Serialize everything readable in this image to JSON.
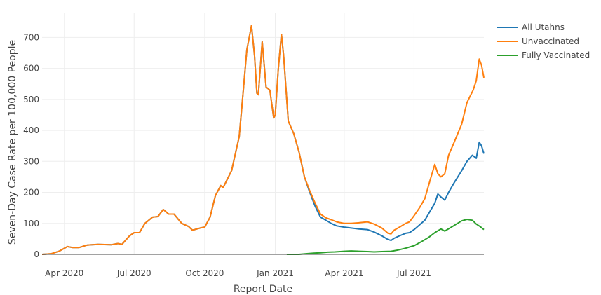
{
  "chart_data": {
    "type": "line",
    "title": "",
    "xlabel": "Report Date",
    "ylabel": "Seven-Day Case Rate per 100,000 People",
    "ylim": [
      0,
      780
    ],
    "xlim": [
      "2020-03-03",
      "2021-09-30"
    ],
    "yticks": [
      0,
      100,
      200,
      300,
      400,
      500,
      600,
      700
    ],
    "xticks": [
      {
        "date": "2020-04-01",
        "label": "Apr 2020"
      },
      {
        "date": "2020-07-01",
        "label": "Jul 2020"
      },
      {
        "date": "2020-10-01",
        "label": "Oct 2020"
      },
      {
        "date": "2021-01-01",
        "label": "Jan 2021"
      },
      {
        "date": "2021-04-01",
        "label": "Apr 2021"
      },
      {
        "date": "2021-07-01",
        "label": "Jul 2021"
      }
    ],
    "grid": true,
    "legend_position": "top-right",
    "series": [
      {
        "name": "All Utahns",
        "color": "#1f77b4",
        "points": [
          [
            "2020-03-03",
            0
          ],
          [
            "2020-03-15",
            2
          ],
          [
            "2020-03-25",
            10
          ],
          [
            "2020-04-05",
            25
          ],
          [
            "2020-04-12",
            22
          ],
          [
            "2020-04-20",
            22
          ],
          [
            "2020-05-01",
            30
          ],
          [
            "2020-05-15",
            32
          ],
          [
            "2020-06-01",
            31
          ],
          [
            "2020-06-10",
            35
          ],
          [
            "2020-06-15",
            32
          ],
          [
            "2020-06-25",
            60
          ],
          [
            "2020-07-01",
            70
          ],
          [
            "2020-07-08",
            70
          ],
          [
            "2020-07-15",
            100
          ],
          [
            "2020-07-25",
            120
          ],
          [
            "2020-08-01",
            122
          ],
          [
            "2020-08-08",
            145
          ],
          [
            "2020-08-15",
            130
          ],
          [
            "2020-08-22",
            130
          ],
          [
            "2020-09-01",
            100
          ],
          [
            "2020-09-10",
            90
          ],
          [
            "2020-09-15",
            78
          ],
          [
            "2020-09-25",
            85
          ],
          [
            "2020-10-01",
            88
          ],
          [
            "2020-10-08",
            120
          ],
          [
            "2020-10-15",
            190
          ],
          [
            "2020-10-22",
            222
          ],
          [
            "2020-10-25",
            215
          ],
          [
            "2020-11-01",
            250
          ],
          [
            "2020-11-05",
            270
          ],
          [
            "2020-11-15",
            380
          ],
          [
            "2020-11-20",
            520
          ],
          [
            "2020-11-25",
            660
          ],
          [
            "2020-12-01",
            738
          ],
          [
            "2020-12-05",
            640
          ],
          [
            "2020-12-08",
            520
          ],
          [
            "2020-12-10",
            515
          ],
          [
            "2020-12-15",
            686
          ],
          [
            "2020-12-20",
            540
          ],
          [
            "2020-12-25",
            530
          ],
          [
            "2020-12-30",
            440
          ],
          [
            "2021-01-01",
            450
          ],
          [
            "2021-01-05",
            600
          ],
          [
            "2021-01-09",
            710
          ],
          [
            "2021-01-12",
            640
          ],
          [
            "2021-01-18",
            430
          ],
          [
            "2021-01-25",
            390
          ],
          [
            "2021-02-01",
            330
          ],
          [
            "2021-02-08",
            250
          ],
          [
            "2021-02-15",
            200
          ],
          [
            "2021-02-22",
            155
          ],
          [
            "2021-03-01",
            120
          ],
          [
            "2021-03-08",
            110
          ],
          [
            "2021-03-15",
            100
          ],
          [
            "2021-03-22",
            92
          ],
          [
            "2021-04-01",
            88
          ],
          [
            "2021-04-10",
            85
          ],
          [
            "2021-04-20",
            82
          ],
          [
            "2021-05-01",
            80
          ],
          [
            "2021-05-10",
            72
          ],
          [
            "2021-05-20",
            60
          ],
          [
            "2021-05-28",
            48
          ],
          [
            "2021-06-01",
            45
          ],
          [
            "2021-06-05",
            52
          ],
          [
            "2021-06-12",
            60
          ],
          [
            "2021-06-20",
            68
          ],
          [
            "2021-06-25",
            70
          ],
          [
            "2021-07-01",
            80
          ],
          [
            "2021-07-08",
            95
          ],
          [
            "2021-07-15",
            110
          ],
          [
            "2021-07-22",
            140
          ],
          [
            "2021-07-28",
            165
          ],
          [
            "2021-08-01",
            195
          ],
          [
            "2021-08-05",
            185
          ],
          [
            "2021-08-10",
            175
          ],
          [
            "2021-08-15",
            200
          ],
          [
            "2021-08-22",
            230
          ],
          [
            "2021-09-01",
            270
          ],
          [
            "2021-09-08",
            300
          ],
          [
            "2021-09-15",
            320
          ],
          [
            "2021-09-20",
            310
          ],
          [
            "2021-09-24",
            362
          ],
          [
            "2021-09-27",
            350
          ],
          [
            "2021-09-30",
            325
          ]
        ]
      },
      {
        "name": "Unvaccinated",
        "color": "#ff7f0e",
        "points": [
          [
            "2020-03-03",
            0
          ],
          [
            "2020-03-15",
            2
          ],
          [
            "2020-03-25",
            10
          ],
          [
            "2020-04-05",
            25
          ],
          [
            "2020-04-12",
            22
          ],
          [
            "2020-04-20",
            22
          ],
          [
            "2020-05-01",
            30
          ],
          [
            "2020-05-15",
            32
          ],
          [
            "2020-06-01",
            31
          ],
          [
            "2020-06-10",
            35
          ],
          [
            "2020-06-15",
            32
          ],
          [
            "2020-06-25",
            60
          ],
          [
            "2020-07-01",
            70
          ],
          [
            "2020-07-08",
            70
          ],
          [
            "2020-07-15",
            100
          ],
          [
            "2020-07-25",
            120
          ],
          [
            "2020-08-01",
            122
          ],
          [
            "2020-08-08",
            145
          ],
          [
            "2020-08-15",
            130
          ],
          [
            "2020-08-22",
            130
          ],
          [
            "2020-09-01",
            100
          ],
          [
            "2020-09-10",
            90
          ],
          [
            "2020-09-15",
            78
          ],
          [
            "2020-09-25",
            85
          ],
          [
            "2020-10-01",
            88
          ],
          [
            "2020-10-08",
            120
          ],
          [
            "2020-10-15",
            190
          ],
          [
            "2020-10-22",
            222
          ],
          [
            "2020-10-25",
            215
          ],
          [
            "2020-11-01",
            250
          ],
          [
            "2020-11-05",
            270
          ],
          [
            "2020-11-15",
            380
          ],
          [
            "2020-11-20",
            520
          ],
          [
            "2020-11-25",
            660
          ],
          [
            "2020-12-01",
            738
          ],
          [
            "2020-12-05",
            640
          ],
          [
            "2020-12-08",
            520
          ],
          [
            "2020-12-10",
            515
          ],
          [
            "2020-12-15",
            686
          ],
          [
            "2020-12-20",
            540
          ],
          [
            "2020-12-25",
            530
          ],
          [
            "2020-12-30",
            440
          ],
          [
            "2021-01-01",
            450
          ],
          [
            "2021-01-05",
            600
          ],
          [
            "2021-01-09",
            710
          ],
          [
            "2021-01-12",
            640
          ],
          [
            "2021-01-18",
            430
          ],
          [
            "2021-01-25",
            390
          ],
          [
            "2021-02-01",
            330
          ],
          [
            "2021-02-08",
            250
          ],
          [
            "2021-02-15",
            205
          ],
          [
            "2021-02-22",
            165
          ],
          [
            "2021-03-01",
            130
          ],
          [
            "2021-03-08",
            118
          ],
          [
            "2021-03-15",
            112
          ],
          [
            "2021-03-22",
            105
          ],
          [
            "2021-04-01",
            100
          ],
          [
            "2021-04-10",
            100
          ],
          [
            "2021-04-20",
            102
          ],
          [
            "2021-05-01",
            105
          ],
          [
            "2021-05-10",
            98
          ],
          [
            "2021-05-20",
            85
          ],
          [
            "2021-05-28",
            68
          ],
          [
            "2021-06-01",
            66
          ],
          [
            "2021-06-05",
            78
          ],
          [
            "2021-06-12",
            88
          ],
          [
            "2021-06-20",
            100
          ],
          [
            "2021-06-25",
            105
          ],
          [
            "2021-07-01",
            125
          ],
          [
            "2021-07-08",
            150
          ],
          [
            "2021-07-15",
            180
          ],
          [
            "2021-07-22",
            240
          ],
          [
            "2021-07-28",
            290
          ],
          [
            "2021-08-01",
            260
          ],
          [
            "2021-08-05",
            250
          ],
          [
            "2021-08-10",
            260
          ],
          [
            "2021-08-15",
            320
          ],
          [
            "2021-08-22",
            360
          ],
          [
            "2021-09-01",
            420
          ],
          [
            "2021-09-08",
            490
          ],
          [
            "2021-09-12",
            510
          ],
          [
            "2021-09-16",
            530
          ],
          [
            "2021-09-20",
            560
          ],
          [
            "2021-09-24",
            630
          ],
          [
            "2021-09-27",
            610
          ],
          [
            "2021-09-30",
            570
          ]
        ]
      },
      {
        "name": "Fully Vaccinated",
        "color": "#2ca02c",
        "points": [
          [
            "2021-01-16",
            0
          ],
          [
            "2021-02-01",
            0
          ],
          [
            "2021-02-10",
            2
          ],
          [
            "2021-02-20",
            4
          ],
          [
            "2021-03-01",
            5
          ],
          [
            "2021-03-10",
            7
          ],
          [
            "2021-03-20",
            8
          ],
          [
            "2021-04-01",
            10
          ],
          [
            "2021-04-10",
            11
          ],
          [
            "2021-04-20",
            10
          ],
          [
            "2021-05-01",
            9
          ],
          [
            "2021-05-10",
            8
          ],
          [
            "2021-05-20",
            9
          ],
          [
            "2021-06-01",
            10
          ],
          [
            "2021-06-10",
            14
          ],
          [
            "2021-06-20",
            20
          ],
          [
            "2021-07-01",
            28
          ],
          [
            "2021-07-10",
            40
          ],
          [
            "2021-07-20",
            55
          ],
          [
            "2021-07-28",
            70
          ],
          [
            "2021-08-05",
            82
          ],
          [
            "2021-08-10",
            75
          ],
          [
            "2021-08-20",
            90
          ],
          [
            "2021-09-01",
            108
          ],
          [
            "2021-09-08",
            113
          ],
          [
            "2021-09-15",
            110
          ],
          [
            "2021-09-20",
            98
          ],
          [
            "2021-09-25",
            90
          ],
          [
            "2021-09-30",
            80
          ]
        ]
      }
    ]
  }
}
